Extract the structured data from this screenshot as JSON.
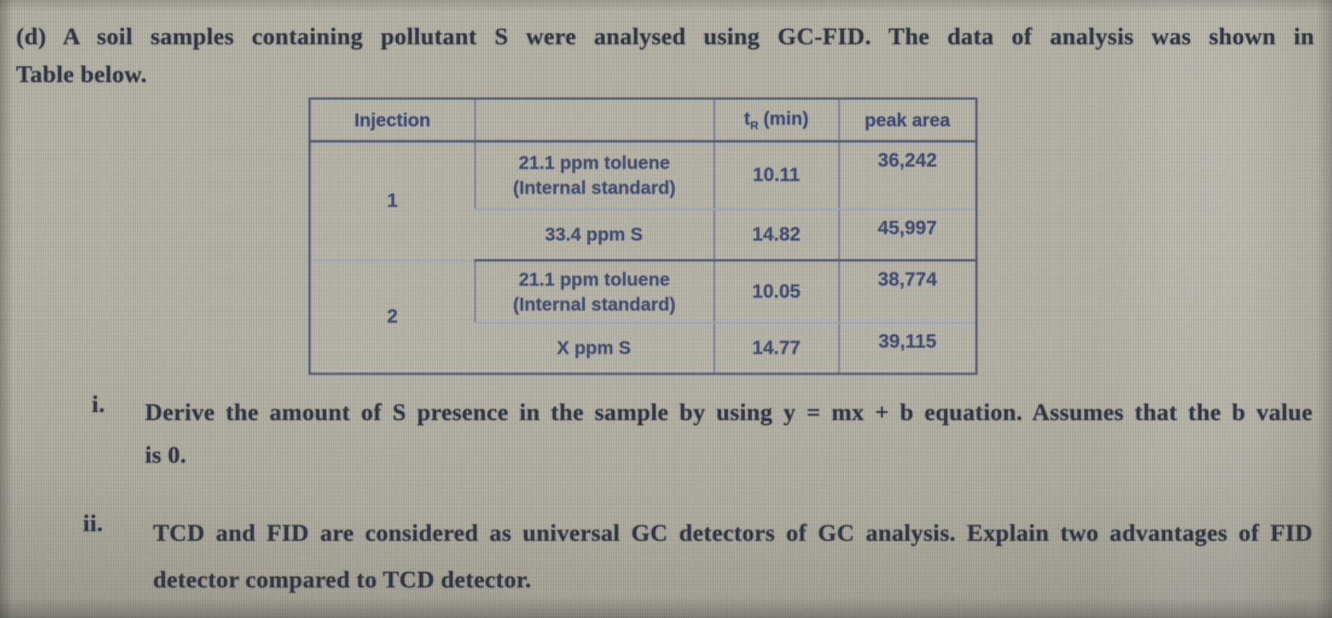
{
  "page": {
    "background_color": "#a9a69b",
    "ink_color": "#272c3b",
    "table_ink_color": "#3a466b",
    "table_line_dark": "#4c556d",
    "table_line_light": "#9aa3c0"
  },
  "intro": {
    "lines": [
      "(d) A soil samples containing pollutant S were analysed using GC-FID. The data of analysis was shown in",
      "Table below."
    ]
  },
  "table": {
    "headers": {
      "injection": "Injection",
      "substance": "",
      "tr_prefix": "t",
      "tr_sub": "R",
      "tr_unit": "(min)",
      "peak_area": "peak area"
    },
    "rows": [
      {
        "injection": "1",
        "substance_line1": "21.1 ppm toluene",
        "substance_line2": "(Internal standard)",
        "tr": "10.11",
        "peak": "36,242"
      },
      {
        "substance_line1": "33.4 ppm S",
        "tr": "14.82",
        "peak": "45,997"
      },
      {
        "injection": "2",
        "substance_line1": "21.1 ppm toluene",
        "substance_line2": "(Internal standard)",
        "tr": "10.05",
        "peak": "38,774"
      },
      {
        "substance_line1": "X ppm S",
        "tr": "14.77",
        "peak": "39,115"
      }
    ]
  },
  "questions": [
    {
      "numeral": "i.",
      "lines": [
        "Derive the amount of S presence in the sample by using y = mx + b equation. Assumes that the b value",
        "is 0."
      ]
    },
    {
      "numeral": "ii.",
      "lines": [
        "TCD and FID are considered as universal GC detectors of GC analysis. Explain two advantages of FID",
        "detector compared to TCD detector."
      ]
    }
  ]
}
